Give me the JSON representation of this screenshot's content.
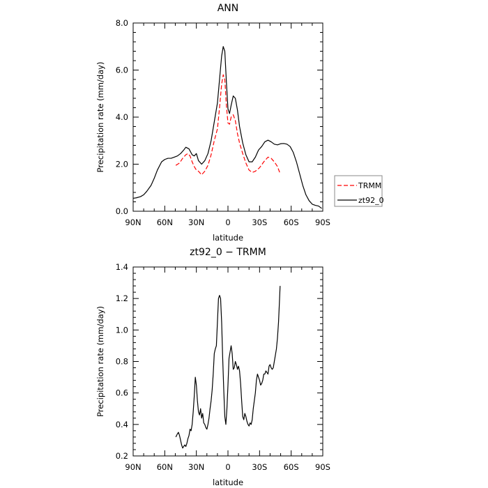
{
  "chart_data": [
    {
      "type": "line",
      "title": "ANN",
      "xlabel": "latitude",
      "ylabel": "Precipitation rate (mm/day)",
      "xlim": [
        90,
        -90
      ],
      "ylim": [
        0,
        8
      ],
      "xticks": [
        90,
        60,
        30,
        0,
        -30,
        -60,
        -90
      ],
      "xtick_labels": [
        "90N",
        "60N",
        "30N",
        "0",
        "30S",
        "60S",
        "90S"
      ],
      "yticks": [
        0,
        2,
        4,
        6,
        8
      ],
      "ytick_labels": [
        "0.0",
        "2.0",
        "4.0",
        "6.0",
        "8.0"
      ],
      "legend": "outside-right",
      "series": [
        {
          "name": "TRMM",
          "color": "#ff0000",
          "dashed": true,
          "x": [
            49.5,
            46,
            43,
            40,
            38,
            36,
            34,
            32,
            30,
            28,
            25,
            22,
            19,
            16,
            13,
            10,
            8,
            6,
            4.5,
            3,
            1.5,
            0,
            -1.5,
            -3,
            -5,
            -7,
            -9,
            -11,
            -14,
            -17,
            -20,
            -23,
            -26,
            -30,
            -34,
            -38,
            -41,
            -44,
            -47,
            -49.5
          ],
          "y": [
            1.95,
            2.05,
            2.25,
            2.4,
            2.45,
            2.35,
            2.1,
            1.9,
            1.75,
            1.7,
            1.55,
            1.7,
            1.95,
            2.4,
            3.0,
            3.5,
            4.4,
            5.4,
            5.8,
            5.6,
            4.5,
            3.75,
            3.7,
            4.0,
            4.1,
            3.85,
            3.3,
            2.9,
            2.45,
            2.05,
            1.75,
            1.65,
            1.7,
            1.85,
            2.1,
            2.3,
            2.25,
            2.1,
            1.9,
            1.6
          ]
        },
        {
          "name": "zt92_0",
          "color": "#000000",
          "dashed": false,
          "x": [
            90,
            87,
            83,
            80,
            77,
            73,
            70,
            67,
            63,
            60,
            57,
            54,
            51,
            48,
            45,
            42,
            40,
            37,
            34,
            32,
            30,
            28,
            25,
            22,
            19,
            16,
            13,
            10,
            8,
            6,
            4.5,
            3,
            1.5,
            0,
            -1.5,
            -3,
            -5,
            -7,
            -9,
            -11,
            -14,
            -17,
            -20,
            -23,
            -26,
            -29,
            -32,
            -35,
            -38,
            -41,
            -44,
            -47,
            -50,
            -53,
            -56,
            -59,
            -62,
            -65,
            -68,
            -71,
            -74,
            -77,
            -80,
            -83,
            -86,
            -89
          ],
          "y": [
            0.55,
            0.57,
            0.62,
            0.7,
            0.85,
            1.1,
            1.4,
            1.75,
            2.1,
            2.2,
            2.25,
            2.25,
            2.3,
            2.35,
            2.45,
            2.6,
            2.72,
            2.65,
            2.4,
            2.35,
            2.45,
            2.15,
            2.0,
            2.15,
            2.45,
            3.0,
            3.8,
            4.6,
            5.6,
            6.6,
            7.0,
            6.8,
            5.5,
            4.35,
            4.15,
            4.5,
            4.9,
            4.8,
            4.3,
            3.6,
            2.9,
            2.4,
            2.1,
            2.1,
            2.3,
            2.6,
            2.75,
            2.95,
            3.02,
            2.95,
            2.85,
            2.82,
            2.87,
            2.88,
            2.85,
            2.75,
            2.5,
            2.1,
            1.6,
            1.1,
            0.7,
            0.45,
            0.3,
            0.25,
            0.22,
            0.12
          ]
        }
      ]
    },
    {
      "type": "line",
      "title": "zt92_0 − TRMM",
      "xlabel": "latitude",
      "ylabel": "Precipitation rate (mm/day)",
      "xlim": [
        90,
        -90
      ],
      "ylim": [
        0.2,
        1.4
      ],
      "xticks": [
        90,
        60,
        30,
        0,
        -30,
        -60,
        -90
      ],
      "xtick_labels": [
        "90N",
        "60N",
        "30N",
        "0",
        "30S",
        "60S",
        "90S"
      ],
      "yticks": [
        0.2,
        0.4,
        0.6,
        0.8,
        1.0,
        1.2,
        1.4
      ],
      "ytick_labels": [
        "0.2",
        "0.4",
        "0.6",
        "0.8",
        "1.0",
        "1.2",
        "1.4"
      ],
      "series": [
        {
          "color": "#000000",
          "dashed": false,
          "x": [
            49.5,
            48,
            47,
            46,
            45,
            44,
            43,
            42,
            41,
            40,
            39,
            38,
            37,
            36,
            35,
            34,
            33,
            32,
            31,
            30,
            29,
            28,
            27,
            26,
            25,
            24,
            23,
            22,
            21,
            20,
            19,
            18,
            17,
            16,
            15,
            14,
            13,
            12,
            11,
            10,
            9,
            8,
            7,
            6,
            5,
            4,
            3,
            2,
            1,
            0,
            -1,
            -2,
            -3,
            -4,
            -5,
            -6,
            -7,
            -8,
            -9,
            -10,
            -11,
            -12,
            -13,
            -14,
            -15,
            -16,
            -17,
            -18,
            -19,
            -20,
            -21,
            -22,
            -23,
            -24,
            -25,
            -26,
            -27,
            -28,
            -29,
            -30,
            -31,
            -32,
            -33,
            -34,
            -35,
            -36,
            -37,
            -38,
            -39,
            -40,
            -41,
            -42,
            -43,
            -44,
            -45,
            -46,
            -47,
            -48,
            -49,
            -49.5
          ],
          "y": [
            0.32,
            0.34,
            0.35,
            0.33,
            0.3,
            0.27,
            0.25,
            0.26,
            0.27,
            0.26,
            0.28,
            0.31,
            0.33,
            0.37,
            0.36,
            0.4,
            0.48,
            0.58,
            0.7,
            0.65,
            0.55,
            0.48,
            0.46,
            0.5,
            0.44,
            0.47,
            0.41,
            0.4,
            0.38,
            0.37,
            0.4,
            0.44,
            0.5,
            0.55,
            0.62,
            0.72,
            0.85,
            0.88,
            0.9,
            1.05,
            1.2,
            1.22,
            1.2,
            1.05,
            0.82,
            0.62,
            0.45,
            0.4,
            0.5,
            0.65,
            0.82,
            0.86,
            0.9,
            0.85,
            0.75,
            0.76,
            0.8,
            0.78,
            0.75,
            0.77,
            0.74,
            0.66,
            0.55,
            0.45,
            0.43,
            0.47,
            0.45,
            0.42,
            0.4,
            0.39,
            0.41,
            0.4,
            0.43,
            0.5,
            0.55,
            0.6,
            0.68,
            0.72,
            0.7,
            0.68,
            0.65,
            0.66,
            0.68,
            0.72,
            0.72,
            0.74,
            0.73,
            0.72,
            0.77,
            0.78,
            0.76,
            0.75,
            0.76,
            0.8,
            0.84,
            0.88,
            0.95,
            1.05,
            1.2,
            1.28
          ]
        }
      ]
    }
  ]
}
